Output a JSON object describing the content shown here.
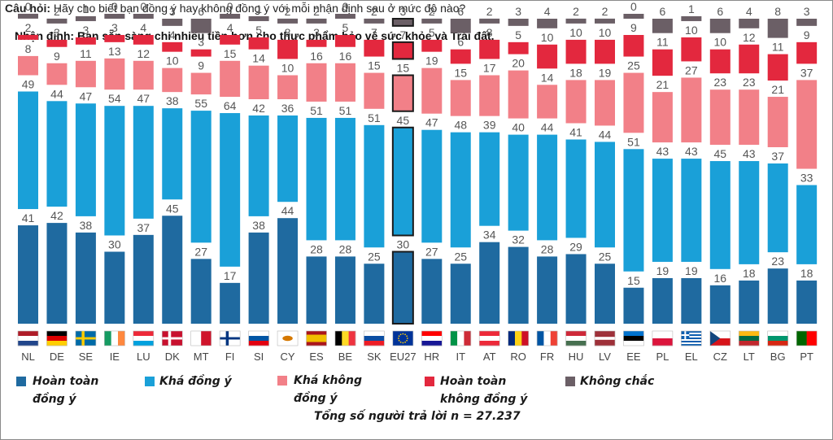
{
  "question": {
    "label": "Câu hỏi:",
    "text": "Hãy cho biết bạn đồng ý hay không đồng ý với mỗi nhận định sau ở mức độ nào?"
  },
  "statement": "Nhận định: Bạn sẵn sàng chi nhiều tiền hơn cho thực phẩm bảo vệ sức khỏe và Trái đất.",
  "total_respondents": "Tổng số người trả lời n = 27.237",
  "legend": [
    {
      "label": "Hoàn toàn\nđồng ý",
      "color": "#1f6aa0"
    },
    {
      "label": "Khá đồng ý",
      "color": "#1aa0d8"
    },
    {
      "label": "Khá không\nđồng ý",
      "color": "#f28088"
    },
    {
      "label": "Hoàn toàn\nkhông đồng ý",
      "color": "#e3283e"
    },
    {
      "label": "Không chắc",
      "color": "#6b5f66"
    }
  ],
  "chart_data": {
    "type": "bar",
    "stacked": true,
    "highlight_category": "EU27",
    "categories": [
      "NL",
      "DE",
      "SE",
      "IE",
      "LU",
      "DK",
      "MT",
      "FI",
      "SI",
      "CY",
      "ES",
      "BE",
      "SK",
      "EU27",
      "HR",
      "IT",
      "AT",
      "RO",
      "FR",
      "HU",
      "LV",
      "EE",
      "PL",
      "EL",
      "CZ",
      "LT",
      "BG",
      "PT"
    ],
    "series": [
      {
        "name": "Hoàn toàn đồng ý",
        "color": "#1f6aa0",
        "values": [
          41,
          42,
          38,
          30,
          37,
          45,
          27,
          17,
          38,
          44,
          28,
          28,
          25,
          30,
          27,
          25,
          34,
          32,
          28,
          29,
          25,
          15,
          19,
          19,
          16,
          18,
          23,
          18
        ]
      },
      {
        "name": "Khá đồng ý",
        "color": "#1aa0d8",
        "values": [
          49,
          44,
          47,
          54,
          47,
          38,
          55,
          64,
          42,
          36,
          51,
          51,
          51,
          45,
          47,
          48,
          39,
          40,
          44,
          41,
          44,
          51,
          43,
          43,
          45,
          43,
          37,
          33
        ]
      },
      {
        "name": "Khá không đồng ý",
        "color": "#f28088",
        "values": [
          8,
          9,
          11,
          13,
          12,
          10,
          9,
          15,
          14,
          10,
          16,
          16,
          15,
          15,
          19,
          15,
          17,
          20,
          14,
          18,
          19,
          25,
          21,
          27,
          23,
          23,
          21,
          37
        ]
      },
      {
        "name": "Hoàn toàn không đồng ý",
        "color": "#e3283e",
        "values": [
          2,
          3,
          3,
          3,
          4,
          4,
          3,
          4,
          5,
          8,
          3,
          5,
          7,
          7,
          5,
          6,
          8,
          5,
          10,
          10,
          10,
          9,
          11,
          10,
          10,
          12,
          11,
          9
        ]
      },
      {
        "name": "Không chắc",
        "color": "#6b5f66",
        "values": [
          0,
          2,
          1,
          0,
          0,
          3,
          6,
          0,
          1,
          2,
          2,
          0,
          2,
          3,
          2,
          6,
          2,
          3,
          4,
          2,
          2,
          0,
          6,
          1,
          6,
          4,
          8,
          3
        ]
      }
    ],
    "flags": {
      "NL": [
        "#ae1c28",
        "#ffffff",
        "#21468b"
      ],
      "DE": [
        "#000000",
        "#dd0000",
        "#ffce00"
      ],
      "SE": "cross:#006aa7:#fecc00",
      "IE": "v:#169b62:#ffffff:#ff883e",
      "LU": [
        "#ed2939",
        "#ffffff",
        "#00a1de"
      ],
      "DK": "cross:#c8102e:#ffffff",
      "MT": "v:#ffffff:#cf142b",
      "FI": "cross:#ffffff:#003580",
      "SI": [
        "#ffffff",
        "#0055a4",
        "#e3000f"
      ],
      "CY": "plain:#ffffff:#d57800",
      "ES": [
        "#aa151b",
        "#f1bf00",
        "#f1bf00",
        "#aa151b"
      ],
      "BE": "v:#000000:#fdda24:#ef3340",
      "SK": [
        "#ffffff",
        "#0b4ea2",
        "#ee1c25"
      ],
      "EU27": "eu:#003399:#ffcc00",
      "HR": [
        "#ff0000",
        "#ffffff",
        "#171796"
      ],
      "IT": "v:#009246:#ffffff:#ce2b37",
      "AT": [
        "#ed2939",
        "#ffffff",
        "#ed2939"
      ],
      "RO": "v:#002b7f:#fcd116:#ce1126",
      "FR": "v:#0055a4:#ffffff:#ef4135",
      "HU": [
        "#ce2939",
        "#ffffff",
        "#477050"
      ],
      "LV": [
        "#9e3039",
        "#9e3039",
        "#ffffff",
        "#9e3039",
        "#9e3039"
      ],
      "EE": [
        "#0072ce",
        "#000000",
        "#ffffff"
      ],
      "PL": [
        "#ffffff",
        "#dc143c"
      ],
      "EL": "stripes:#0d5eaf:#ffffff",
      "CZ": "cz:#ffffff:#d7141a:#11457e",
      "LT": [
        "#fdb913",
        "#006a44",
        "#c1272d"
      ],
      "BG": [
        "#ffffff",
        "#00966e",
        "#d62612"
      ],
      "PT": "v:#006600:#ff0000"
    }
  }
}
